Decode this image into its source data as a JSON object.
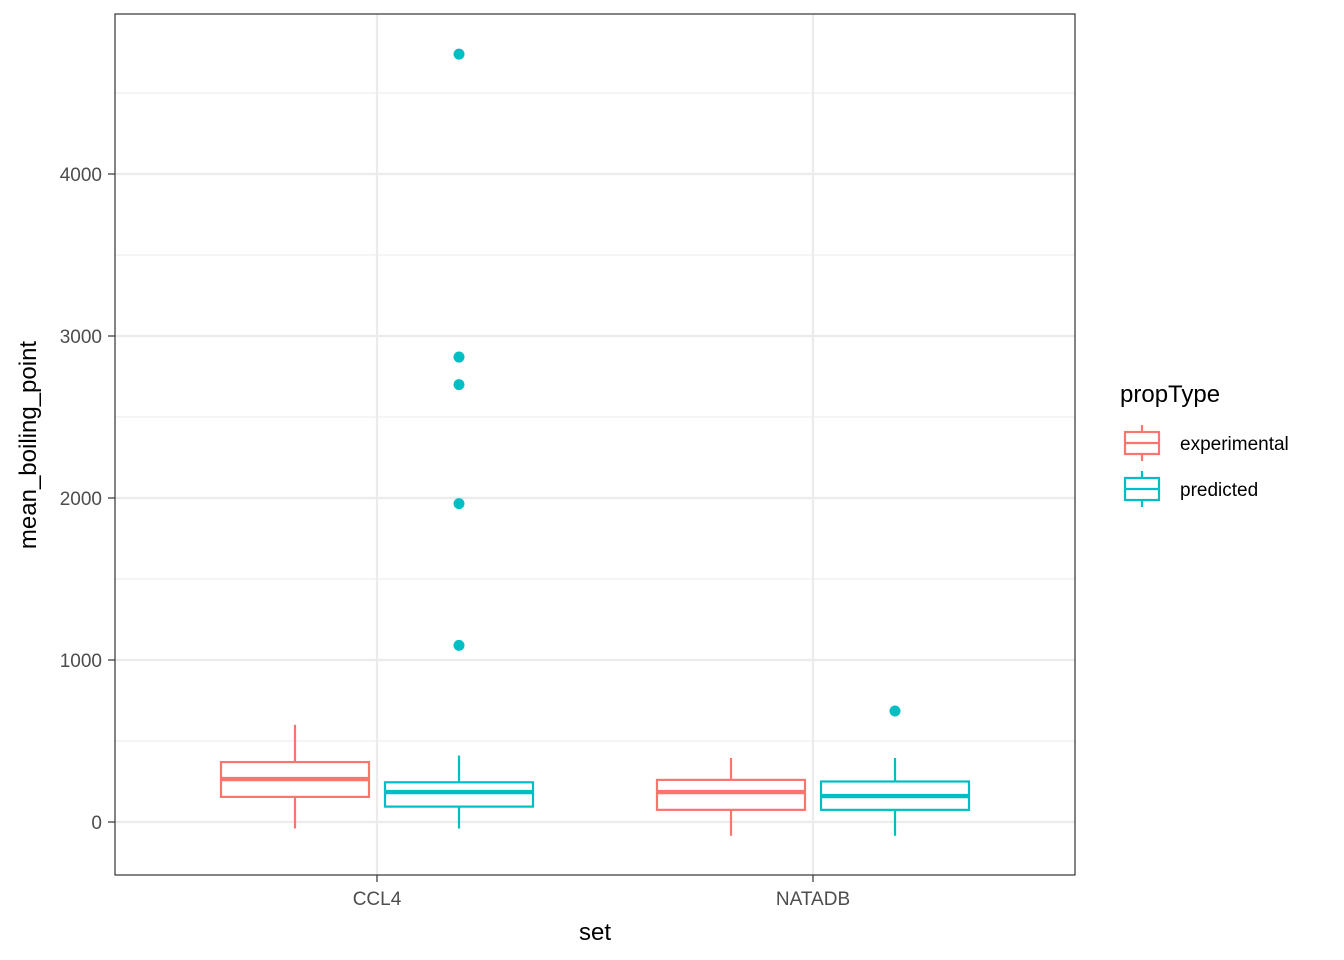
{
  "chart_data": {
    "type": "boxplot",
    "xlabel": "set",
    "ylabel": "mean_boiling_point",
    "ylim": [
      -320,
      4950
    ],
    "y_major_ticks": [
      0,
      1000,
      2000,
      3000,
      4000
    ],
    "y_minor_ticks": [
      500,
      1500,
      2500,
      3500,
      4500
    ],
    "categories": [
      "CCL4",
      "NATADB"
    ],
    "legend": {
      "title": "propType",
      "position": "right",
      "entries": [
        {
          "name": "experimental",
          "color": "#F8766D"
        },
        {
          "name": "predicted",
          "color": "#00BFC4"
        }
      ]
    },
    "series": [
      {
        "name": "experimental",
        "color": "#F8766D",
        "boxes": [
          {
            "category": "CCL4",
            "whisker_low": -40,
            "q1": 155,
            "median": 265,
            "q3": 370,
            "whisker_high": 600,
            "outliers": []
          },
          {
            "category": "NATADB",
            "whisker_low": -85,
            "q1": 75,
            "median": 185,
            "q3": 260,
            "whisker_high": 395,
            "outliers": []
          }
        ]
      },
      {
        "name": "predicted",
        "color": "#00BFC4",
        "boxes": [
          {
            "category": "CCL4",
            "whisker_low": -40,
            "q1": 95,
            "median": 185,
            "q3": 245,
            "whisker_high": 410,
            "outliers": [
              1090,
              1965,
              2700,
              2870,
              4740
            ]
          },
          {
            "category": "NATADB",
            "whisker_low": -85,
            "q1": 75,
            "median": 160,
            "q3": 250,
            "whisker_high": 395,
            "outliers": [
              685
            ]
          }
        ]
      }
    ]
  }
}
